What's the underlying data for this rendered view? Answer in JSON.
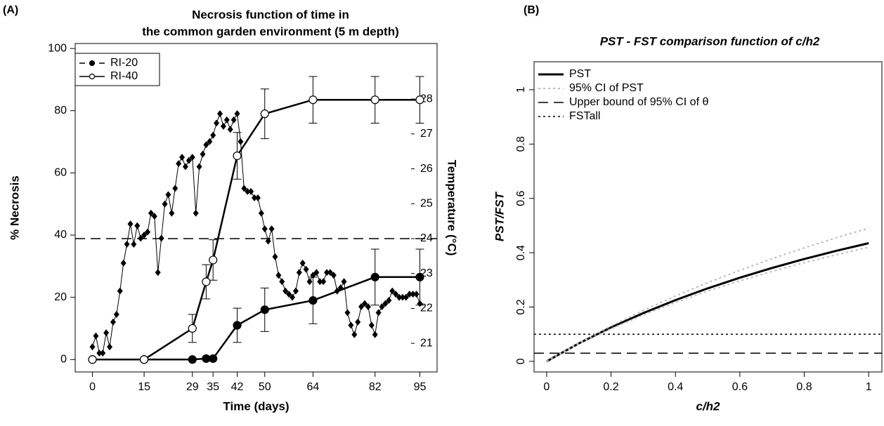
{
  "chart_data": [
    {
      "label": "(A)",
      "type": "line",
      "title": [
        "Necrosis function of time in",
        "the common garden environment (5 m depth)"
      ],
      "xlabel": "Time (days)",
      "ylabel": "% Necrosis",
      "y2label": "Temperature (°C)",
      "x": [
        0,
        15,
        29,
        33,
        35,
        42,
        50,
        64,
        82,
        95
      ],
      "xlim": [
        -5,
        100
      ],
      "xticks": [
        0,
        15,
        29,
        35,
        42,
        50,
        64,
        82,
        95
      ],
      "ylim": [
        -4,
        101.6
      ],
      "yticks": [
        0,
        20,
        40,
        60,
        80,
        100
      ],
      "y2lim": [
        20.18,
        29.59
      ],
      "y2ticks": [
        21,
        22,
        23,
        24,
        25,
        26,
        27,
        28
      ],
      "legend": "top-left",
      "legend_frame": true,
      "series": [
        {
          "color": "#000000",
          "marker": "diamond",
          "axis": "y2",
          "x": [
            0,
            1,
            2,
            3,
            4,
            5,
            6,
            7,
            8,
            9,
            10,
            11,
            12,
            13,
            14,
            15,
            16,
            17,
            18,
            19,
            20,
            21,
            22,
            23,
            24,
            25,
            26,
            27,
            28,
            29,
            30,
            31,
            32,
            33,
            34,
            35,
            36,
            37,
            38,
            39,
            40,
            41,
            42,
            43,
            44,
            45,
            46,
            47,
            48,
            49,
            50,
            51,
            52,
            53,
            54,
            55,
            56,
            57,
            58,
            59,
            60,
            61,
            62,
            63,
            64,
            65,
            66,
            67,
            68,
            69,
            70,
            71,
            72,
            73,
            74,
            75,
            76,
            77,
            78,
            79,
            80,
            81,
            82,
            83,
            84,
            85,
            86,
            87,
            88,
            89,
            90,
            91,
            92,
            93,
            94,
            95
          ],
          "values": [
            20.9,
            21.21,
            20.72,
            20.72,
            21.3,
            20.9,
            21.61,
            21.83,
            22.5,
            23.3,
            23.84,
            24.42,
            23.84,
            24.37,
            24.01,
            24.1,
            24.19,
            24.73,
            24.64,
            23.03,
            24.01,
            24.99,
            25.26,
            24.73,
            25.44,
            26.15,
            26.33,
            26.06,
            26.24,
            26.33,
            24.73,
            26.06,
            26.42,
            26.69,
            26.78,
            26.96,
            27.31,
            27.58,
            27.22,
            27.4,
            27.13,
            27.4,
            27.58,
            26.78,
            25.44,
            25.35,
            25.35,
            25.17,
            25.17,
            24.73,
            24.28,
            23.93,
            24.28,
            23.48,
            22.95,
            22.77,
            22.5,
            22.41,
            22.32,
            22.5,
            23.03,
            23.3,
            23.12,
            22.77,
            22.95,
            23.03,
            22.77,
            22.77,
            23.03,
            23.03,
            22.95,
            22.5,
            22.59,
            22.77,
            21.88,
            21.52,
            21.25,
            21.61,
            22.05,
            22.14,
            22.05,
            21.52,
            21.25,
            21.88,
            22.05,
            22.14,
            22.23,
            22.5,
            22.41,
            22.32,
            22.32,
            22.32,
            22.41,
            22.41,
            22.41,
            22.14
          ]
        },
        {
          "name": "RI-20",
          "color": "#000000",
          "marker": "filled",
          "legend_dash": "dashed",
          "values": [
            0,
            0,
            0,
            0.3,
            0.3,
            11,
            16,
            19,
            26.5,
            26.5
          ],
          "errors": [
            null,
            null,
            null,
            null,
            null,
            5.5,
            7,
            7.5,
            9,
            9
          ]
        },
        {
          "name": "RI-40",
          "color": "#000000",
          "marker": "open",
          "values": [
            0,
            0,
            10,
            25,
            32,
            65.5,
            79,
            83.5,
            83.5,
            83.5
          ],
          "errors": [
            null,
            null,
            4.5,
            5.5,
            6.5,
            7.5,
            8,
            7.5,
            7.5,
            7.5
          ]
        }
      ],
      "hlines": [
        {
          "value": 24,
          "axis": "y2",
          "dash": "dashed",
          "color": "#000000"
        }
      ]
    },
    {
      "label": "(B)",
      "type": "line",
      "title": "PST - FST comparison function of c/h2",
      "xlabel": "c/h2",
      "ylabel": "PST/FST",
      "x": [
        0,
        0.1,
        0.2,
        0.3,
        0.4,
        0.5,
        0.6,
        0.7,
        0.8,
        0.9,
        1
      ],
      "xlim": [
        -0.039,
        1.041
      ],
      "xticks": [
        0,
        0.2,
        0.4,
        0.6,
        0.8,
        1
      ],
      "ylim": [
        -0.039,
        1.103
      ],
      "yticks": [
        0,
        0.2,
        0.4,
        0.6,
        0.8,
        1
      ],
      "legend": "top-left",
      "legend_frame": false,
      "series": [
        {
          "name": "PST",
          "color": "#000000",
          "width": 3,
          "values": [
            0,
            0.0661,
            0.1251,
            0.1779,
            0.2255,
            0.2687,
            0.3079,
            0.3439,
            0.3768,
            0.4072,
            0.4352
          ]
        },
        {
          "name": "95% CI of PST",
          "color": "#bbbbbb",
          "width": 2,
          "dash": "dotted",
          "values": [
            0,
            0.0678,
            0.1301,
            0.1874,
            0.2405,
            0.2897,
            0.3354,
            0.3781,
            0.4179,
            0.4553,
            0.4903
          ],
          "lower_values": [
            0,
            0.0634,
            0.12,
            0.1708,
            0.2168,
            0.2585,
            0.2965,
            0.3313,
            0.3632,
            0.3927,
            0.42
          ]
        }
      ],
      "hlines": [
        {
          "name": "Upper bound of 95% CI of θ",
          "value": 0.03,
          "dash": "dashed",
          "color": "#000000"
        },
        {
          "name": "FSTall",
          "value": 0.1,
          "dash": "dotted",
          "color": "#000000"
        }
      ]
    }
  ]
}
